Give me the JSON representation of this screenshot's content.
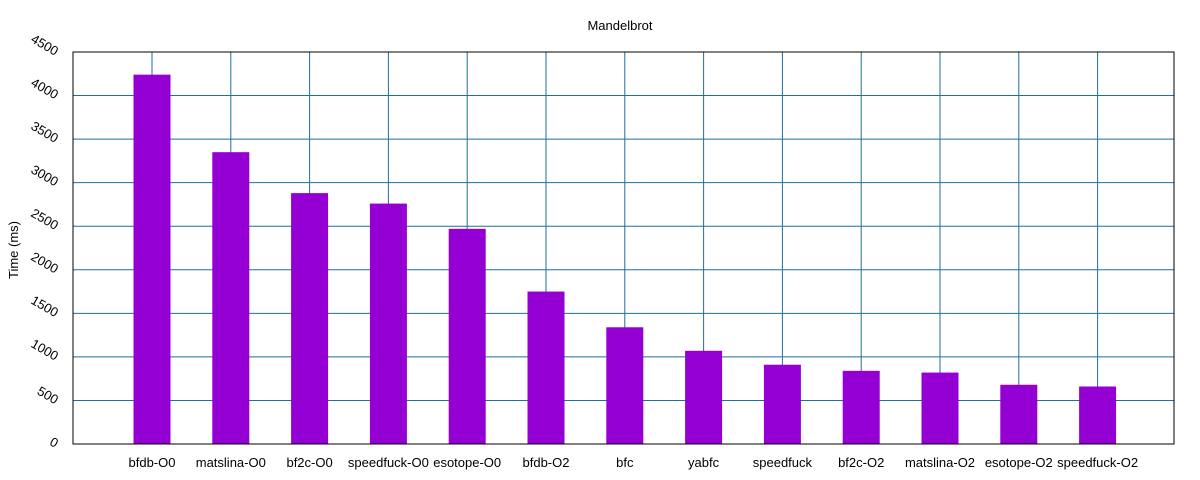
{
  "chart_data": {
    "type": "bar",
    "title": "Mandelbrot",
    "xlabel": "",
    "ylabel": "Time (ms)",
    "ylim": [
      0,
      4500
    ],
    "yticks": [
      0,
      500,
      1000,
      1500,
      2000,
      2500,
      3000,
      3500,
      4000,
      4500
    ],
    "grid": true,
    "categories": [
      "bfdb-O0",
      "matslina-O0",
      "bf2c-O0",
      "speedfuck-O0",
      "esotope-O0",
      "bfdb-O2",
      "bfc",
      "yabfc",
      "speedfuck",
      "bf2c-O2",
      "matslina-O2",
      "esotope-O2",
      "speedfuck-O2"
    ],
    "values": [
      4240,
      3350,
      2880,
      2760,
      2470,
      1750,
      1340,
      1070,
      910,
      840,
      820,
      680,
      660
    ],
    "colors": {
      "bar": "#9400d3",
      "grid": "#1f6e9e",
      "axis": "#000000"
    }
  }
}
